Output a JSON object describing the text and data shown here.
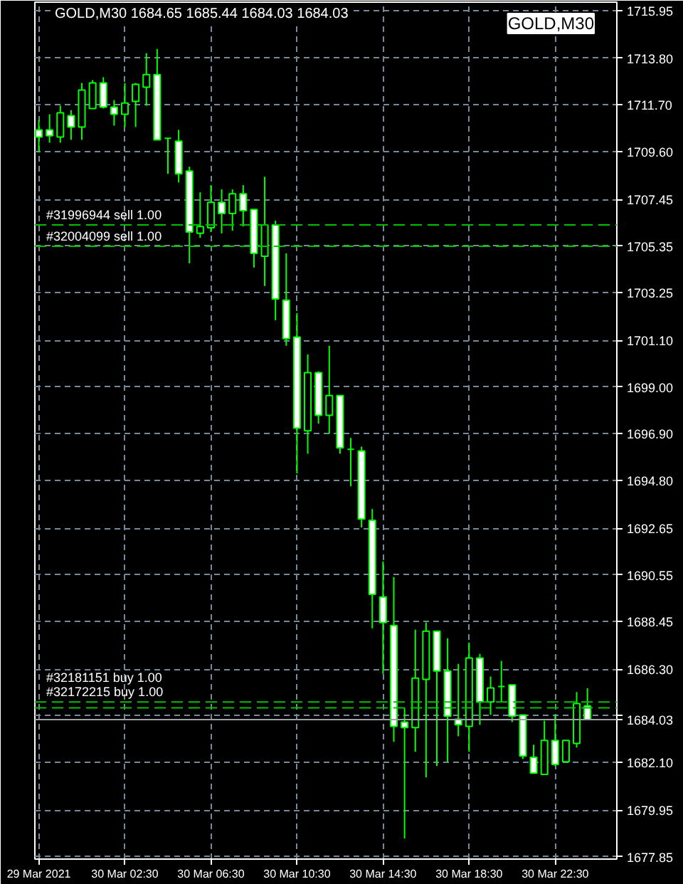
{
  "chart_data": {
    "type": "candlestick",
    "title": "GOLD,M30  1684.65 1685.44 1684.03 1684.03",
    "annotations": [
      "GOLD,M30"
    ],
    "color": "#00ff00",
    "grid": true,
    "x": [
      "2021-03-29T22:30",
      "2021-03-29T23:00",
      "2021-03-29T23:30",
      "2021-03-30T00:00",
      "2021-03-30T00:30",
      "2021-03-30T01:00",
      "2021-03-30T01:30",
      "2021-03-30T02:00",
      "2021-03-30T02:30",
      "2021-03-30T03:00",
      "2021-03-30T03:30",
      "2021-03-30T04:00",
      "2021-03-30T04:30",
      "2021-03-30T05:00",
      "2021-03-30T05:30",
      "2021-03-30T06:00",
      "2021-03-30T06:30",
      "2021-03-30T07:00",
      "2021-03-30T07:30",
      "2021-03-30T08:00",
      "2021-03-30T08:30",
      "2021-03-30T09:00",
      "2021-03-30T09:30",
      "2021-03-30T10:00",
      "2021-03-30T10:30",
      "2021-03-30T11:00",
      "2021-03-30T11:30",
      "2021-03-30T12:00",
      "2021-03-30T12:30",
      "2021-03-30T13:00",
      "2021-03-30T13:30",
      "2021-03-30T14:00",
      "2021-03-30T14:30",
      "2021-03-30T15:00",
      "2021-03-30T15:30",
      "2021-03-30T16:00",
      "2021-03-30T16:30",
      "2021-03-30T17:00",
      "2021-03-30T17:30",
      "2021-03-30T18:00",
      "2021-03-30T18:30",
      "2021-03-30T19:00",
      "2021-03-30T19:30",
      "2021-03-30T20:00",
      "2021-03-30T20:30",
      "2021-03-30T21:00",
      "2021-03-30T21:30",
      "2021-03-30T22:00",
      "2021-03-30T22:30",
      "2021-03-30T23:00",
      "2021-03-30T23:30",
      "2021-03-31T00:00"
    ],
    "ohlc": [
      [
        1710.58,
        1711.03,
        1709.56,
        1710.26
      ],
      [
        1710.58,
        1711.28,
        1710.0,
        1710.31
      ],
      [
        1710.26,
        1711.67,
        1710.0,
        1711.35
      ],
      [
        1711.22,
        1711.47,
        1710.13,
        1710.71
      ],
      [
        1710.71,
        1712.69,
        1710.13,
        1712.37
      ],
      [
        1711.54,
        1712.82,
        1711.54,
        1712.69
      ],
      [
        1712.69,
        1712.95,
        1711.54,
        1711.6
      ],
      [
        1711.6,
        1711.92,
        1710.77,
        1711.28
      ],
      [
        1711.28,
        1712.69,
        1710.71,
        1711.79
      ],
      [
        1711.86,
        1712.69,
        1710.71,
        1712.63
      ],
      [
        1712.5,
        1714.03,
        1711.67,
        1713.07
      ],
      [
        1713.07,
        1714.22,
        1710.13,
        1710.13
      ],
      [
        1710.2,
        1710.2,
        1708.6,
        1710.2
      ],
      [
        1710.07,
        1710.58,
        1708.21,
        1708.6
      ],
      [
        1708.73,
        1708.92,
        1704.57,
        1705.98
      ],
      [
        1705.92,
        1707.77,
        1705.72,
        1706.23
      ],
      [
        1706.17,
        1708.09,
        1705.98,
        1707.32
      ],
      [
        1707.32,
        1707.9,
        1705.92,
        1706.81
      ],
      [
        1706.81,
        1707.9,
        1706.04,
        1707.7
      ],
      [
        1707.7,
        1708.09,
        1706.23,
        1706.94
      ],
      [
        1707.0,
        1707.0,
        1704.38,
        1705.02
      ],
      [
        1704.89,
        1708.47,
        1703.55,
        1706.3
      ],
      [
        1706.3,
        1706.49,
        1702.01,
        1702.97
      ],
      [
        1702.91,
        1705.02,
        1700.86,
        1701.18
      ],
      [
        1701.25,
        1702.33,
        1695.11,
        1697.15
      ],
      [
        1697.03,
        1700.47,
        1696.0,
        1699.65
      ],
      [
        1699.65,
        1699.71,
        1697.35,
        1697.73
      ],
      [
        1697.73,
        1700.86,
        1696.9,
        1698.62
      ],
      [
        1698.62,
        1698.62,
        1696.0,
        1696.26
      ],
      [
        1696.2,
        1696.71,
        1694.53,
        1696.2
      ],
      [
        1696.13,
        1696.32,
        1692.68,
        1693.06
      ],
      [
        1693.0,
        1693.51,
        1688.14,
        1689.67
      ],
      [
        1689.55,
        1691.15,
        1686.09,
        1688.4
      ],
      [
        1688.27,
        1690.45,
        1683.03,
        1683.73
      ],
      [
        1683.92,
        1684.56,
        1678.68,
        1683.67
      ],
      [
        1683.67,
        1688.08,
        1682.58,
        1685.9
      ],
      [
        1685.84,
        1688.4,
        1681.43,
        1688.01
      ],
      [
        1688.01,
        1688.01,
        1681.94,
        1686.22
      ],
      [
        1686.22,
        1687.69,
        1682.13,
        1684.18
      ],
      [
        1684.05,
        1686.54,
        1683.28,
        1683.8
      ],
      [
        1683.73,
        1687.5,
        1682.58,
        1686.8
      ],
      [
        1686.8,
        1686.99,
        1683.79,
        1684.82
      ],
      [
        1684.82,
        1685.97,
        1684.24,
        1685.46
      ],
      [
        1685.52,
        1686.67,
        1684.82,
        1685.52
      ],
      [
        1685.59,
        1685.59,
        1683.92,
        1684.18
      ],
      [
        1684.24,
        1684.24,
        1682.26,
        1682.39
      ],
      [
        1682.33,
        1682.9,
        1681.62,
        1681.62
      ],
      [
        1681.56,
        1683.98,
        1681.56,
        1683.09
      ],
      [
        1683.09,
        1684.24,
        1681.94,
        1682.01
      ],
      [
        1682.13,
        1683.09,
        1682.13,
        1683.09
      ],
      [
        1682.96,
        1685.27,
        1682.77,
        1684.75
      ],
      [
        1684.65,
        1685.44,
        1684.03,
        1684.03
      ]
    ],
    "xlim": [
      "2021-03-29T22:19",
      "2021-03-31T01:22"
    ],
    "xticks": [
      {
        "value": "2021-03-29T22:30",
        "label": "29 Mar 2021"
      },
      {
        "value": "2021-03-30T02:30",
        "label": "30 Mar 02:30"
      },
      {
        "value": "2021-03-30T06:30",
        "label": "30 Mar 06:30"
      },
      {
        "value": "2021-03-30T10:30",
        "label": "30 Mar 10:30"
      },
      {
        "value": "2021-03-30T14:30",
        "label": "30 Mar 14:30"
      },
      {
        "value": "2021-03-30T18:30",
        "label": "30 Mar 18:30"
      },
      {
        "value": "2021-03-30T22:30",
        "label": "30 Mar 22:30"
      }
    ],
    "ylim": [
      1677.75,
      1716.33
    ],
    "yticks": [
      1677.85,
      1679.95,
      {
        "value": 1682.1,
        "label": "1682.10"
      },
      {
        "value": 1684.2,
        "label": null
      },
      {
        "value": 1686.3,
        "label": "1686.30"
      },
      1688.45,
      1690.55,
      1692.65,
      {
        "value": 1694.8,
        "label": "1694.80"
      },
      {
        "value": 1696.9,
        "label": "1696.90"
      },
      {
        "value": 1699,
        "label": "1699.00"
      },
      {
        "value": 1701.1,
        "label": "1701.10"
      },
      1703.25,
      1705.35,
      1707.45,
      {
        "value": 1709.6,
        "label": "1709.60"
      },
      {
        "value": 1711.7,
        "label": "1711.70"
      },
      {
        "value": 1713.8,
        "label": "1713.80"
      },
      1715.95
    ],
    "ref_lines": [
      {
        "axis": "y",
        "value": 1706.3,
        "label": "#31996944 sell 1.00",
        "color": "#00c000",
        "line_style": "dashed"
      },
      {
        "axis": "y",
        "value": 1705.34,
        "label": "#32004099 sell 1.00",
        "color": "#00c000",
        "line_style": "dashed"
      },
      {
        "axis": "y",
        "value": 1684.82,
        "label": "#32172215 buy 1.00",
        "color": "#00c000",
        "line_style": "dashed"
      },
      {
        "axis": "y",
        "value": 1684.56,
        "label": "#32181151 buy 1.00",
        "color": "#00c000",
        "line_style": "dashed"
      },
      {
        "axis": "y",
        "value": 1684.03,
        "label": "1684.03",
        "color": "#a0a0a8",
        "line_style": "solid"
      }
    ]
  }
}
